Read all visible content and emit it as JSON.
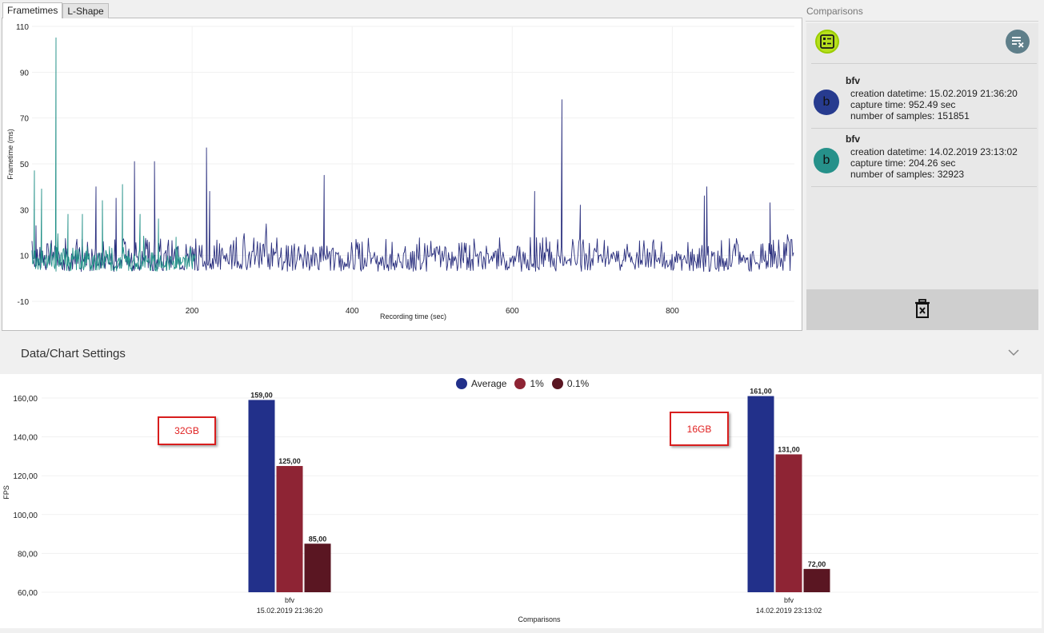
{
  "tabs": [
    {
      "label": "Frametimes",
      "active": true
    },
    {
      "label": "L-Shape",
      "active": false
    }
  ],
  "frametime_chart": {
    "ylabel": "Frametime (ms)",
    "xlabel": "Recording time (sec)",
    "y_ticks": [
      "110",
      "90",
      "70",
      "50",
      "30",
      "10",
      "-10"
    ],
    "x_ticks": [
      "200",
      "400",
      "600",
      "800"
    ]
  },
  "comparisons": {
    "title": "Comparisons",
    "items": [
      {
        "initial": "b",
        "name": "bfv",
        "creation": "creation datetime: 15.02.2019 21:36:20",
        "capture": "capture time: 952.49 sec",
        "samples": "number of samples: 151851",
        "color": "#273b8f"
      },
      {
        "initial": "b",
        "name": "bfv",
        "creation": "creation datetime: 14.02.2019 23:13:02",
        "capture": "capture time: 204.26 sec",
        "samples": "number of samples: 32923",
        "color": "#26918a"
      }
    ]
  },
  "settings": {
    "title": "Data/Chart Settings"
  },
  "legend": [
    {
      "label": "Average",
      "color": "#22308a"
    },
    {
      "label": "1%",
      "color": "#8e2434"
    },
    {
      "label": "0.1%",
      "color": "#5a1622"
    }
  ],
  "annotations": [
    {
      "text": "32GB"
    },
    {
      "text": "16GB"
    }
  ],
  "chart_data": [
    {
      "type": "line",
      "title": "",
      "xlabel": "Recording time (sec)",
      "ylabel": "Frametime (ms)",
      "xlim": [
        0,
        952.49
      ],
      "ylim": [
        -10,
        110
      ],
      "grid": true,
      "series": [
        {
          "name": "bfv 15.02.2019 21:36:20",
          "color": "#2a2f7e",
          "duration": 952.49,
          "baseline_range": [
            3,
            18
          ],
          "peaks": [
            [
              5,
              23
            ],
            [
              80,
              40
            ],
            [
              105,
              35
            ],
            [
              128,
              51
            ],
            [
              153,
              51
            ],
            [
              218,
              57
            ],
            [
              222,
              38
            ],
            [
              365,
              45
            ],
            [
              628,
              38
            ],
            [
              662,
              78
            ],
            [
              685,
              32
            ],
            [
              840,
              36
            ],
            [
              843,
              40
            ],
            [
              922,
              33
            ]
          ]
        },
        {
          "name": "bfv 14.02.2019 23:13:02",
          "color": "#1f8f86",
          "duration": 204.26,
          "baseline_range": [
            3,
            14
          ],
          "peaks": [
            [
              3,
              47
            ],
            [
              12,
              39
            ],
            [
              30,
              105
            ],
            [
              45,
              28
            ],
            [
              63,
              28
            ],
            [
              88,
              34
            ],
            [
              113,
              41
            ],
            [
              135,
              28
            ],
            [
              158,
              26
            ],
            [
              180,
              18
            ]
          ]
        }
      ]
    },
    {
      "type": "bar",
      "title": "",
      "xlabel": "Comparisons",
      "ylabel": "FPS",
      "ylim": [
        60,
        160
      ],
      "y_ticks": [
        "160,00",
        "140,00",
        "120,00",
        "100,00",
        "80,00",
        "60,00"
      ],
      "categories": [
        "bfv|15.02.2019 21:36:20",
        "bfv|14.02.2019 23:13:02"
      ],
      "series": [
        {
          "name": "Average",
          "values": [
            159.0,
            161.0
          ],
          "labels": [
            "159,00",
            "161,00"
          ],
          "color": "#22308a"
        },
        {
          "name": "1%",
          "values": [
            125.0,
            131.0
          ],
          "labels": [
            "125,00",
            "131,00"
          ],
          "color": "#8e2434"
        },
        {
          "name": "0.1%",
          "values": [
            85.0,
            72.0
          ],
          "labels": [
            "85,00",
            "72,00"
          ],
          "color": "#5a1622"
        }
      ]
    }
  ]
}
